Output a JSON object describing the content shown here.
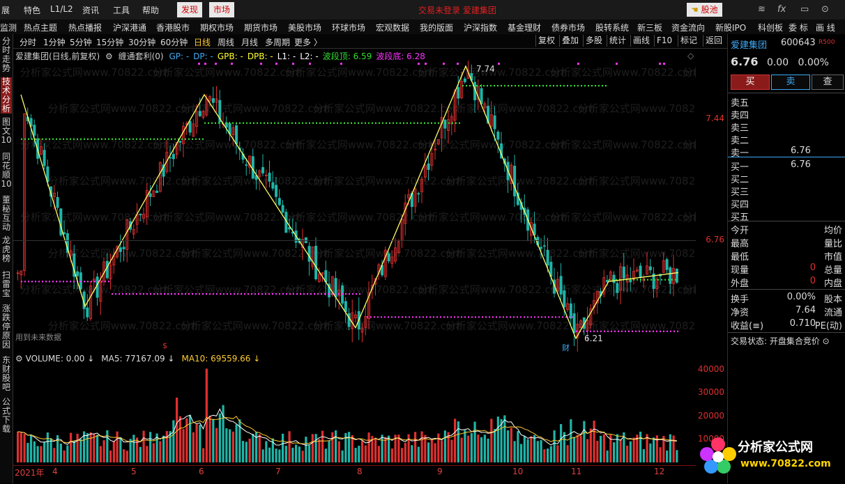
{
  "top_menu": {
    "items": [
      "展",
      "特色",
      "L1/L2",
      "资讯",
      "工具",
      "帮助"
    ],
    "discover": "发现",
    "market": "市场",
    "alert": "交易未登录   爱建集团",
    "stock_pool": "股池"
  },
  "nav": {
    "items": [
      "监测",
      "热点主题",
      "热点播报",
      "沪深港通",
      "香港股市",
      "期权市场",
      "期货市场",
      "美股市场",
      "环球市场",
      "宏观数据",
      "我的版面",
      "沪深指数",
      "基金理财",
      "债券市场",
      "股转系统",
      "新三板",
      "资金流向",
      "新股IPO",
      "科创板",
      "委 标",
      "画 线"
    ]
  },
  "toolbar": {
    "periods": [
      "分时",
      "1分钟",
      "5分钟",
      "15分钟",
      "30分钟",
      "60分钟",
      "日线",
      "周线",
      "月线",
      "多周期",
      "更多 〉"
    ],
    "active_period": "日线",
    "tools": [
      "复权",
      "叠加",
      "多股",
      "统计",
      "画线",
      "F10",
      "标记",
      "返回"
    ]
  },
  "left_tabs": [
    "分时走势",
    "技术分析",
    "图文10",
    "同花顺10",
    "董秘互动",
    "龙虎榜",
    "扫雷宝",
    "涨跌停原因",
    "东财股吧",
    "公式下载"
  ],
  "left_tabs_active": "技术分析",
  "chart": {
    "stock_title": "爱建集团(日线,前复权)",
    "indicator_name": "缠通套利(0)",
    "indicators": [
      {
        "label": "GP: -",
        "color": "#3fa9f5"
      },
      {
        "label": "DP: -",
        "color": "#3fa9f5"
      },
      {
        "label": "GPB: -",
        "color": "#ffff33"
      },
      {
        "label": "DPB: -",
        "color": "#ffff33"
      },
      {
        "label": "L1: -",
        "color": "#ffffff"
      },
      {
        "label": "L2: -",
        "color": "#ffffff"
      },
      {
        "label": "波段顶: 6.59",
        "color": "#33dd33"
      },
      {
        "label": "波段底: 6.28",
        "color": "#ff33ff"
      }
    ],
    "price_axis": [
      "7.44",
      "6.76"
    ],
    "annotations": {
      "peak": "7.74",
      "trough": "6.21",
      "finance_marker": "财",
      "dollar_marker": "$"
    },
    "future_data_label": "用到未来数据"
  },
  "volume": {
    "header": [
      {
        "label": "VOLUME: 0.00",
        "color": "#dddddd"
      },
      {
        "label": "MA5: 77167.09",
        "color": "#dddddd"
      },
      {
        "label": "MA10: 69559.66",
        "color": "#ffcc33"
      }
    ],
    "axis": [
      "40000",
      "30000",
      "20000",
      "10000"
    ]
  },
  "xaxis": {
    "labels": [
      "2021年",
      "4",
      "5",
      "6",
      "7",
      "8",
      "9",
      "10",
      "11",
      "12"
    ]
  },
  "right_panel": {
    "stock_name": "爱建集团",
    "stock_code": "600643",
    "badge": "R500",
    "price": "6.76",
    "change": "0.00",
    "change_pct": "0.00%",
    "buy_label": "买",
    "sell_label": "卖",
    "query_label": "查",
    "asks": [
      {
        "label": "卖五",
        "value": ""
      },
      {
        "label": "卖四",
        "value": ""
      },
      {
        "label": "卖三",
        "value": ""
      },
      {
        "label": "卖二",
        "value": ""
      },
      {
        "label": "卖一",
        "value": "6.76"
      }
    ],
    "bids": [
      {
        "label": "买一",
        "value": "6.76"
      },
      {
        "label": "买二",
        "value": ""
      },
      {
        "label": "买三",
        "value": ""
      },
      {
        "label": "买四",
        "value": ""
      },
      {
        "label": "买五",
        "value": ""
      }
    ],
    "stats1": [
      {
        "l": "今开",
        "v": "",
        "r": "均价"
      },
      {
        "l": "最高",
        "v": "",
        "r": "量比"
      },
      {
        "l": "最低",
        "v": "",
        "r": "市值"
      },
      {
        "l": "现量",
        "v": "0",
        "r": "总量"
      },
      {
        "l": "外盘",
        "v": "0",
        "r": "内盘"
      }
    ],
    "stats2": [
      {
        "l": "换手",
        "v": "0.00%",
        "r": "股本"
      },
      {
        "l": "净资",
        "v": "7.64",
        "r": "流通"
      },
      {
        "l": "收益(≡)",
        "v": "0.710",
        "r": "PE(动)"
      }
    ],
    "trade_status": "交易状态: 开盘集合竞价 ⊙"
  },
  "watermark": {
    "main": "分析家公式网",
    "sub": "www.70822.com"
  },
  "colors": {
    "up": "#e03030",
    "down": "#1fb5a8",
    "zigzag": "#ffff66",
    "top_band": "#33dd33",
    "bottom_band": "#ff33ff",
    "accent_blue": "#3fa9f5"
  }
}
